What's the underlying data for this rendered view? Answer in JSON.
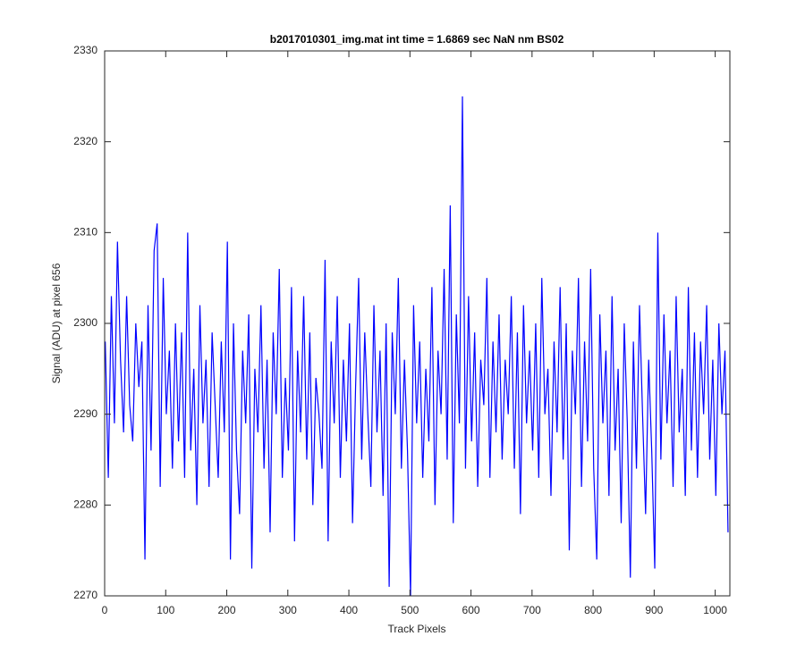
{
  "chart_data": {
    "type": "line",
    "title": "b2017010301_img.mat int time = 1.6869 sec  NaN nm BS02",
    "x_label": "Track Pixels",
    "y_label": "Signal (ADU) at pixel 656",
    "xlim": [
      0,
      1024
    ],
    "ylim": [
      2270,
      2330
    ],
    "xticks": [
      0,
      100,
      200,
      300,
      400,
      500,
      600,
      700,
      800,
      900,
      1000
    ],
    "yticks": [
      2270,
      2280,
      2290,
      2300,
      2310,
      2320,
      2330
    ],
    "x": [
      1,
      6,
      11,
      16,
      21,
      26,
      31,
      36,
      41,
      46,
      51,
      56,
      61,
      66,
      71,
      76,
      81,
      86,
      91,
      96,
      101,
      106,
      111,
      116,
      121,
      126,
      131,
      136,
      141,
      146,
      151,
      156,
      161,
      166,
      171,
      176,
      181,
      186,
      191,
      196,
      201,
      206,
      211,
      216,
      221,
      226,
      231,
      236,
      241,
      246,
      251,
      256,
      261,
      266,
      271,
      276,
      281,
      286,
      291,
      296,
      301,
      306,
      311,
      316,
      321,
      326,
      331,
      336,
      341,
      346,
      351,
      356,
      361,
      366,
      371,
      376,
      381,
      386,
      391,
      396,
      401,
      406,
      411,
      416,
      421,
      426,
      431,
      436,
      441,
      446,
      451,
      456,
      461,
      466,
      471,
      476,
      481,
      486,
      491,
      496,
      501,
      506,
      511,
      516,
      521,
      526,
      531,
      536,
      541,
      546,
      551,
      556,
      561,
      566,
      571,
      576,
      581,
      586,
      591,
      596,
      601,
      606,
      611,
      616,
      621,
      626,
      631,
      636,
      641,
      646,
      651,
      656,
      661,
      666,
      671,
      676,
      681,
      686,
      691,
      696,
      701,
      706,
      711,
      716,
      721,
      726,
      731,
      736,
      741,
      746,
      751,
      756,
      761,
      766,
      771,
      776,
      781,
      786,
      791,
      796,
      801,
      806,
      811,
      816,
      821,
      826,
      831,
      836,
      841,
      846,
      851,
      856,
      861,
      866,
      871,
      876,
      881,
      886,
      891,
      896,
      901,
      906,
      911,
      916,
      921,
      926,
      931,
      936,
      941,
      946,
      951,
      956,
      961,
      966,
      971,
      976,
      981,
      986,
      991,
      996,
      1001,
      1006,
      1011,
      1016,
      1021
    ],
    "series": [
      {
        "color": "#0000ff",
        "values": [
          2298,
          2283,
          2303,
          2289,
          2309,
          2296,
          2288,
          2303,
          2291,
          2287,
          2300,
          2293,
          2298,
          2274,
          2302,
          2286,
          2308,
          2311,
          2282,
          2305,
          2290,
          2297,
          2284,
          2300,
          2287,
          2299,
          2283,
          2310,
          2286,
          2295,
          2280,
          2302,
          2289,
          2296,
          2282,
          2299,
          2291,
          2283,
          2298,
          2288,
          2309,
          2274,
          2300,
          2286,
          2279,
          2297,
          2289,
          2301,
          2273,
          2295,
          2288,
          2302,
          2284,
          2296,
          2277,
          2299,
          2290,
          2306,
          2283,
          2294,
          2286,
          2304,
          2276,
          2297,
          2288,
          2303,
          2285,
          2299,
          2280,
          2294,
          2290,
          2284,
          2307,
          2276,
          2298,
          2289,
          2303,
          2283,
          2296,
          2287,
          2300,
          2278,
          2293,
          2305,
          2285,
          2299,
          2290,
          2282,
          2302,
          2288,
          2297,
          2281,
          2300,
          2271,
          2299,
          2290,
          2305,
          2284,
          2296,
          2286,
          2270,
          2302,
          2289,
          2298,
          2283,
          2295,
          2287,
          2304,
          2280,
          2297,
          2290,
          2306,
          2285,
          2313,
          2278,
          2301,
          2289,
          2325,
          2284,
          2303,
          2287,
          2299,
          2282,
          2296,
          2291,
          2305,
          2283,
          2298,
          2288,
          2301,
          2285,
          2296,
          2290,
          2303,
          2284,
          2299,
          2279,
          2302,
          2289,
          2297,
          2286,
          2300,
          2283,
          2305,
          2290,
          2295,
          2281,
          2298,
          2288,
          2304,
          2285,
          2300,
          2275,
          2297,
          2290,
          2305,
          2282,
          2298,
          2287,
          2306,
          2284,
          2274,
          2301,
          2289,
          2297,
          2281,
          2303,
          2286,
          2295,
          2278,
          2300,
          2289,
          2272,
          2298,
          2284,
          2302,
          2290,
          2279,
          2296,
          2286,
          2273,
          2310,
          2285,
          2301,
          2289,
          2297,
          2282,
          2303,
          2288,
          2295,
          2281,
          2304,
          2286,
          2299,
          2283,
          2298,
          2290,
          2302,
          2285,
          2296,
          2281,
          2300,
          2290,
          2297,
          2277
        ]
      }
    ]
  }
}
